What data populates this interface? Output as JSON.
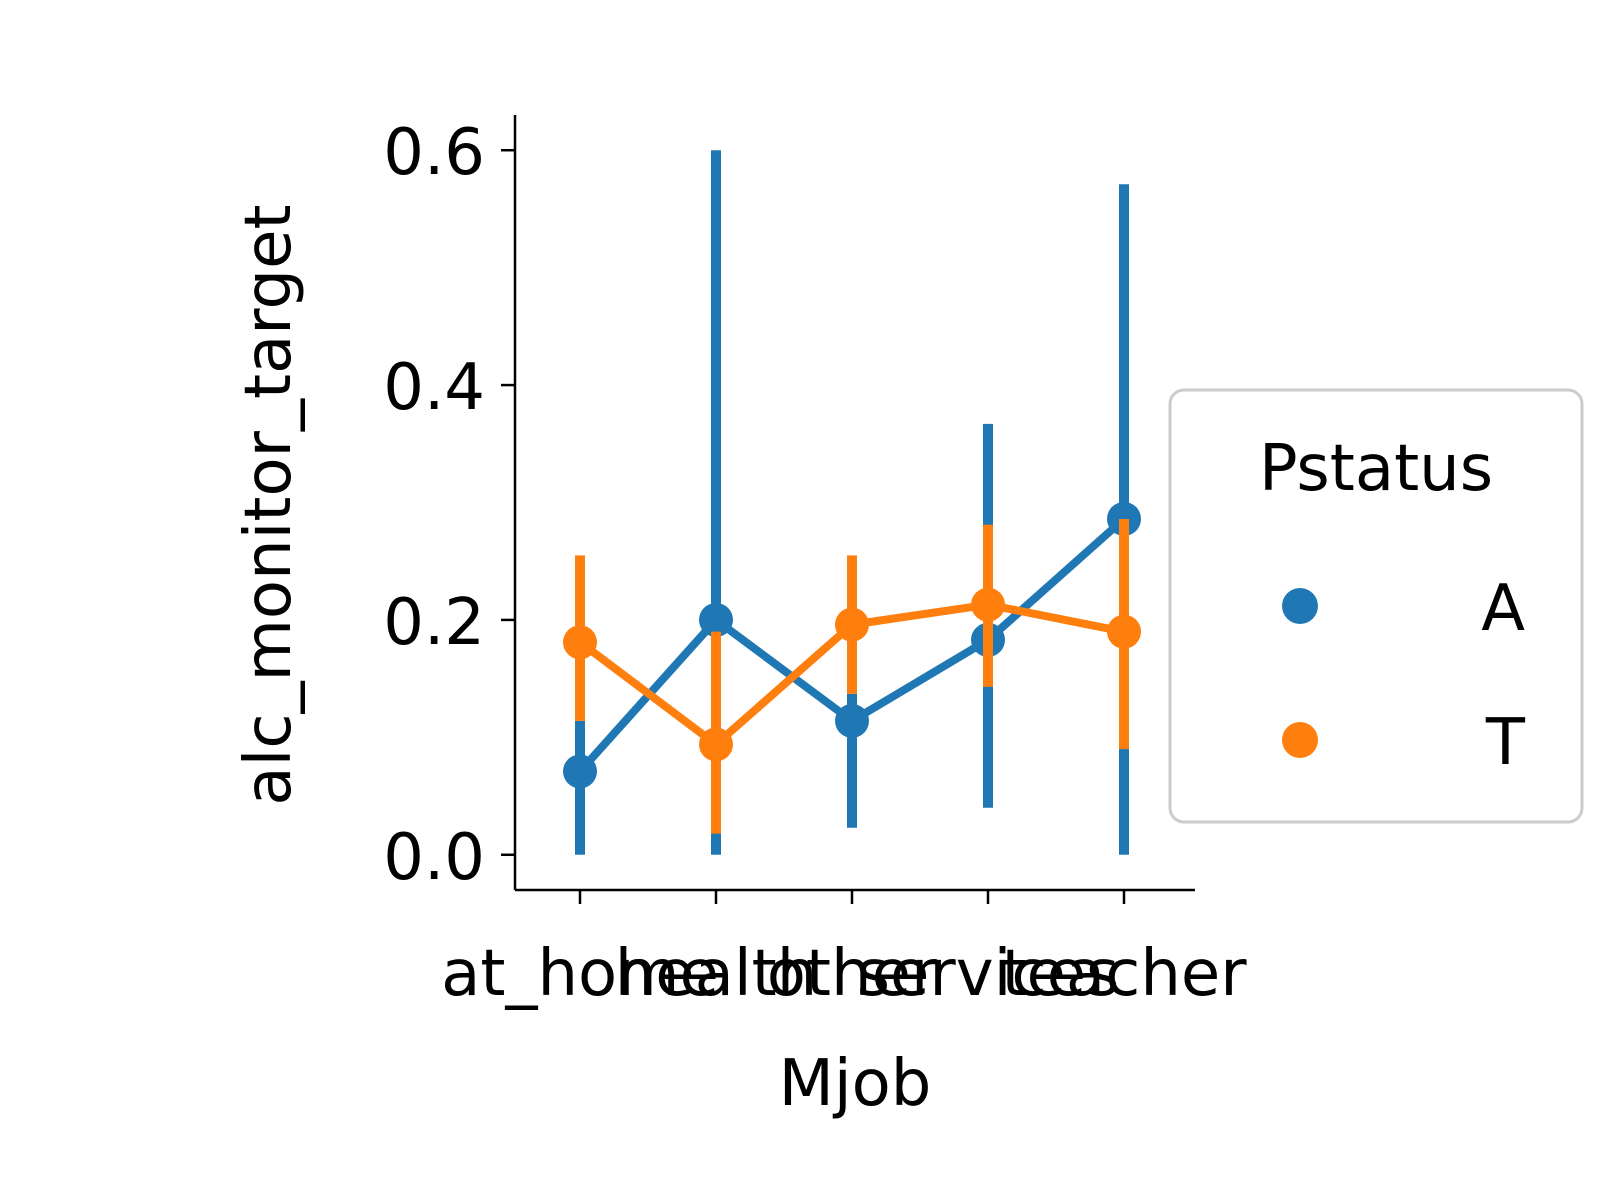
{
  "chart_data": {
    "type": "line",
    "xlabel": "Mjob",
    "ylabel": "alc_monitor_target",
    "categories": [
      "at_home",
      "health",
      "other",
      "services",
      "teacher"
    ],
    "ylim": [
      -0.03,
      0.63
    ],
    "yticks": [
      0.0,
      0.2,
      0.4,
      0.6
    ],
    "ytick_labels": [
      "0.0",
      "0.2",
      "0.4",
      "0.6"
    ],
    "grid": false,
    "legend": {
      "title": "Pstatus",
      "placement": "center-right outside",
      "entries": [
        "A",
        "T"
      ]
    },
    "series": [
      {
        "name": "A",
        "color": "#1f77b4",
        "values": [
          0.071,
          0.2,
          0.114,
          0.183,
          0.286
        ],
        "ci_low": [
          0.0,
          0.0,
          0.023,
          0.04,
          0.0
        ],
        "ci_high": [
          0.114,
          0.6,
          0.137,
          0.367,
          0.571
        ]
      },
      {
        "name": "T",
        "color": "#ff7f0e",
        "values": [
          0.181,
          0.094,
          0.196,
          0.213,
          0.19
        ],
        "ci_low": [
          0.114,
          0.018,
          0.137,
          0.143,
          0.09
        ],
        "ci_high": [
          0.255,
          0.19,
          0.255,
          0.281,
          0.286
        ]
      }
    ]
  }
}
